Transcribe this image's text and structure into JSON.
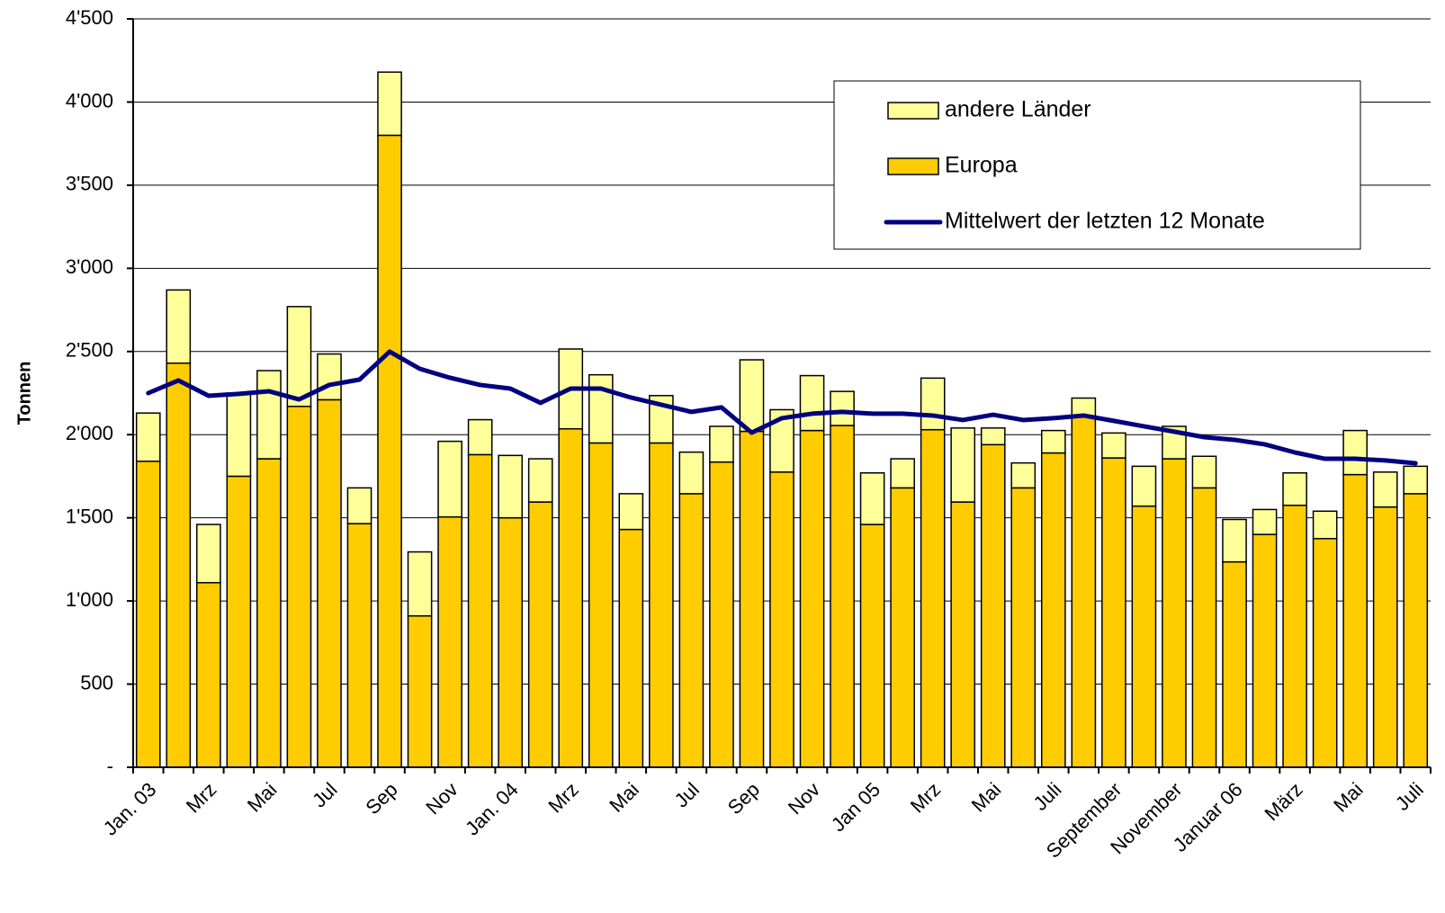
{
  "chart_data": {
    "type": "bar",
    "stacked": true,
    "ylabel": "Tonnen",
    "categories": [
      "Jan. 03",
      null,
      "Mrz",
      null,
      "Mai",
      null,
      "Jul",
      null,
      "Sep",
      null,
      "Nov",
      null,
      "Jan. 04",
      null,
      "Mrz",
      null,
      "Mai",
      null,
      "Jul",
      null,
      "Sep",
      null,
      "Nov",
      null,
      "Jan 05",
      null,
      "Mrz",
      null,
      "Mai",
      null,
      "Juli",
      null,
      "September",
      null,
      "November",
      null,
      "Januar 06",
      null,
      "März",
      null,
      "Mai",
      null,
      "Juli"
    ],
    "series": [
      {
        "name": "Europa",
        "color": "#ffcc00",
        "values": [
          1840,
          2430,
          1110,
          1750,
          1855,
          2170,
          2210,
          1465,
          3800,
          910,
          1505,
          1880,
          1500,
          1595,
          2035,
          1950,
          1430,
          1950,
          1645,
          1835,
          2020,
          1775,
          2025,
          2055,
          1460,
          1680,
          2030,
          1595,
          1940,
          1680,
          1890,
          2110,
          1860,
          1570,
          1855,
          1680,
          1235,
          1400,
          1575,
          1375,
          1760,
          1565,
          1645
        ]
      },
      {
        "name": "andere Länder",
        "color": "#ffff99",
        "values": [
          290,
          440,
          350,
          500,
          530,
          600,
          275,
          215,
          380,
          385,
          455,
          210,
          375,
          260,
          480,
          410,
          215,
          285,
          250,
          215,
          430,
          375,
          330,
          205,
          310,
          175,
          310,
          445,
          100,
          150,
          135,
          110,
          150,
          240,
          195,
          190,
          255,
          150,
          195,
          165,
          265,
          210,
          165
        ]
      },
      {
        "name": "Mittelwert der letzten 12 Monate",
        "type": "line",
        "color": "#000080",
        "values": [
          2250,
          2326,
          2234,
          2245,
          2261,
          2212,
          2299,
          2331,
          2499,
          2396,
          2342,
          2299,
          2277,
          2191,
          2277,
          2277,
          2223,
          2180,
          2137,
          2164,
          2012,
          2099,
          2126,
          2137,
          2126,
          2126,
          2115,
          2088,
          2120,
          2088,
          2099,
          2115,
          2083,
          2050,
          2018,
          1985,
          1969,
          1942,
          1893,
          1855,
          1855,
          1845,
          1828
        ]
      }
    ],
    "ylim": [
      0,
      4500
    ],
    "yticks": [
      {
        "value": 0,
        "label": "-"
      },
      500,
      {
        "value": 1000,
        "label": "1'000"
      },
      {
        "value": 1500,
        "label": "1'500"
      },
      {
        "value": 2000,
        "label": "2'000"
      },
      {
        "value": 2500,
        "label": "2'500"
      },
      {
        "value": 3000,
        "label": "3'000"
      },
      {
        "value": 3500,
        "label": "3'500"
      },
      {
        "value": 4000,
        "label": "4'000"
      },
      {
        "value": 4500,
        "label": "4'500"
      }
    ],
    "grid": true
  }
}
